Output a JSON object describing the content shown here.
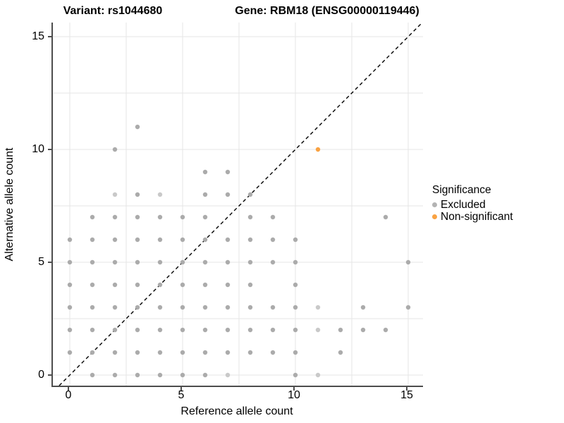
{
  "titles": {
    "variant": "Variant: rs1044680",
    "gene": "Gene: RBM18 (ENSG00000119446)"
  },
  "axes": {
    "x_label": "Reference allele count",
    "y_label": "Alternative allele count",
    "x_ticks": [
      0,
      5,
      10,
      15
    ],
    "y_ticks": [
      0,
      5,
      10,
      15
    ],
    "grid_step": 2.5,
    "grid_color": "#e6e6e6",
    "axis_line_color": "#4d4d4d"
  },
  "legend": {
    "title": "Significance",
    "items": [
      {
        "label": "Excluded",
        "color": "#b3b3b3"
      },
      {
        "label": "Non-significant",
        "color": "#f9a242"
      }
    ]
  },
  "chart_data": {
    "type": "scatter",
    "title_left": "Variant: rs1044680",
    "title_right": "Gene: RBM18 (ENSG00000119446)",
    "xlabel": "Reference allele count",
    "ylabel": "Alternative allele count",
    "xlim": [
      -0.75,
      15.66
    ],
    "ylim": [
      -0.47,
      15.63
    ],
    "grid": "on",
    "legend_position": "right",
    "identity_line": {
      "type": "y=x",
      "style": "dashed",
      "color": "#000000"
    },
    "point_format": "[reference_allele_count, alternative_allele_count, light_shade_flag]",
    "series": [
      {
        "name": "Excluded",
        "color": "#ababab",
        "light_color": "#c9c9c9",
        "points": [
          [
            1,
            0
          ],
          [
            2,
            0
          ],
          [
            3,
            0
          ],
          [
            4,
            0
          ],
          [
            5,
            0
          ],
          [
            6,
            0
          ],
          [
            7,
            0,
            1
          ],
          [
            10,
            0
          ],
          [
            11,
            0,
            1
          ],
          [
            0,
            1
          ],
          [
            1,
            1
          ],
          [
            2,
            1
          ],
          [
            3,
            1
          ],
          [
            4,
            1
          ],
          [
            5,
            1
          ],
          [
            6,
            1
          ],
          [
            7,
            1
          ],
          [
            8,
            1
          ],
          [
            9,
            1
          ],
          [
            10,
            1
          ],
          [
            12,
            1
          ],
          [
            0,
            2
          ],
          [
            1,
            2
          ],
          [
            2,
            2
          ],
          [
            3,
            2
          ],
          [
            4,
            2
          ],
          [
            5,
            2
          ],
          [
            6,
            2
          ],
          [
            7,
            2
          ],
          [
            8,
            2
          ],
          [
            9,
            2
          ],
          [
            10,
            2
          ],
          [
            11,
            2,
            1
          ],
          [
            12,
            2
          ],
          [
            13,
            2
          ],
          [
            14,
            2
          ],
          [
            0,
            3
          ],
          [
            1,
            3
          ],
          [
            2,
            3
          ],
          [
            3,
            3
          ],
          [
            4,
            3
          ],
          [
            5,
            3
          ],
          [
            6,
            3
          ],
          [
            7,
            3
          ],
          [
            8,
            3
          ],
          [
            9,
            3
          ],
          [
            10,
            3
          ],
          [
            11,
            3,
            1
          ],
          [
            13,
            3
          ],
          [
            15,
            3
          ],
          [
            0,
            4
          ],
          [
            1,
            4
          ],
          [
            2,
            4
          ],
          [
            3,
            4
          ],
          [
            4,
            4
          ],
          [
            5,
            4
          ],
          [
            6,
            4
          ],
          [
            7,
            4
          ],
          [
            8,
            4
          ],
          [
            10,
            4
          ],
          [
            0,
            5
          ],
          [
            1,
            5
          ],
          [
            2,
            5
          ],
          [
            3,
            5
          ],
          [
            4,
            5
          ],
          [
            5,
            5
          ],
          [
            6,
            5
          ],
          [
            7,
            5
          ],
          [
            8,
            5
          ],
          [
            9,
            5
          ],
          [
            10,
            5
          ],
          [
            15,
            5
          ],
          [
            0,
            6
          ],
          [
            1,
            6
          ],
          [
            2,
            6
          ],
          [
            3,
            6
          ],
          [
            4,
            6
          ],
          [
            5,
            6
          ],
          [
            6,
            6
          ],
          [
            7,
            6
          ],
          [
            8,
            6
          ],
          [
            9,
            6
          ],
          [
            10,
            6
          ],
          [
            1,
            7
          ],
          [
            2,
            7
          ],
          [
            3,
            7
          ],
          [
            4,
            7
          ],
          [
            5,
            7
          ],
          [
            6,
            7
          ],
          [
            8,
            7
          ],
          [
            9,
            7
          ],
          [
            14,
            7
          ],
          [
            2,
            8,
            1
          ],
          [
            3,
            8
          ],
          [
            4,
            8,
            1
          ],
          [
            6,
            8
          ],
          [
            7,
            8
          ],
          [
            8,
            8
          ],
          [
            6,
            9
          ],
          [
            7,
            9
          ],
          [
            2,
            10
          ],
          [
            3,
            11
          ]
        ]
      },
      {
        "name": "Non-significant",
        "color": "#f9a242",
        "points": [
          [
            11,
            10
          ]
        ]
      }
    ]
  }
}
